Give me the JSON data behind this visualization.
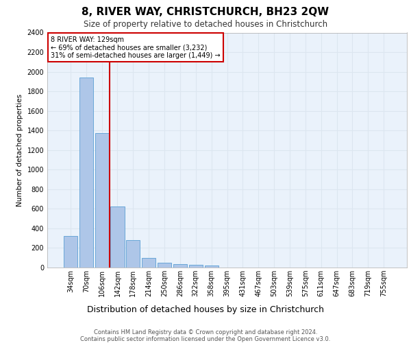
{
  "title": "8, RIVER WAY, CHRISTCHURCH, BH23 2QW",
  "subtitle": "Size of property relative to detached houses in Christchurch",
  "xlabel": "Distribution of detached houses by size in Christchurch",
  "ylabel": "Number of detached properties",
  "bar_labels": [
    "34sqm",
    "70sqm",
    "106sqm",
    "142sqm",
    "178sqm",
    "214sqm",
    "250sqm",
    "286sqm",
    "322sqm",
    "358sqm",
    "395sqm",
    "431sqm",
    "467sqm",
    "503sqm",
    "539sqm",
    "575sqm",
    "611sqm",
    "647sqm",
    "683sqm",
    "719sqm",
    "755sqm"
  ],
  "bar_values": [
    320,
    1940,
    1370,
    625,
    280,
    100,
    50,
    35,
    25,
    20,
    0,
    0,
    0,
    0,
    0,
    0,
    0,
    0,
    0,
    0,
    0
  ],
  "bar_color": "#aec6e8",
  "bar_edgecolor": "#5a9fd4",
  "grid_color": "#dce6f0",
  "background_color": "#eaf2fb",
  "vline_color": "#cc0000",
  "annotation_text": "8 RIVER WAY: 129sqm\n← 69% of detached houses are smaller (3,232)\n31% of semi-detached houses are larger (1,449) →",
  "annotation_box_edgecolor": "#cc0000",
  "ylim": [
    0,
    2400
  ],
  "yticks": [
    0,
    200,
    400,
    600,
    800,
    1000,
    1200,
    1400,
    1600,
    1800,
    2000,
    2200,
    2400
  ],
  "footer_line1": "Contains HM Land Registry data © Crown copyright and database right 2024.",
  "footer_line2": "Contains public sector information licensed under the Open Government Licence v3.0.",
  "title_fontsize": 11,
  "subtitle_fontsize": 8.5,
  "ylabel_fontsize": 7.5,
  "xlabel_fontsize": 9,
  "footer_fontsize": 6,
  "tick_fontsize": 7,
  "annot_fontsize": 7
}
